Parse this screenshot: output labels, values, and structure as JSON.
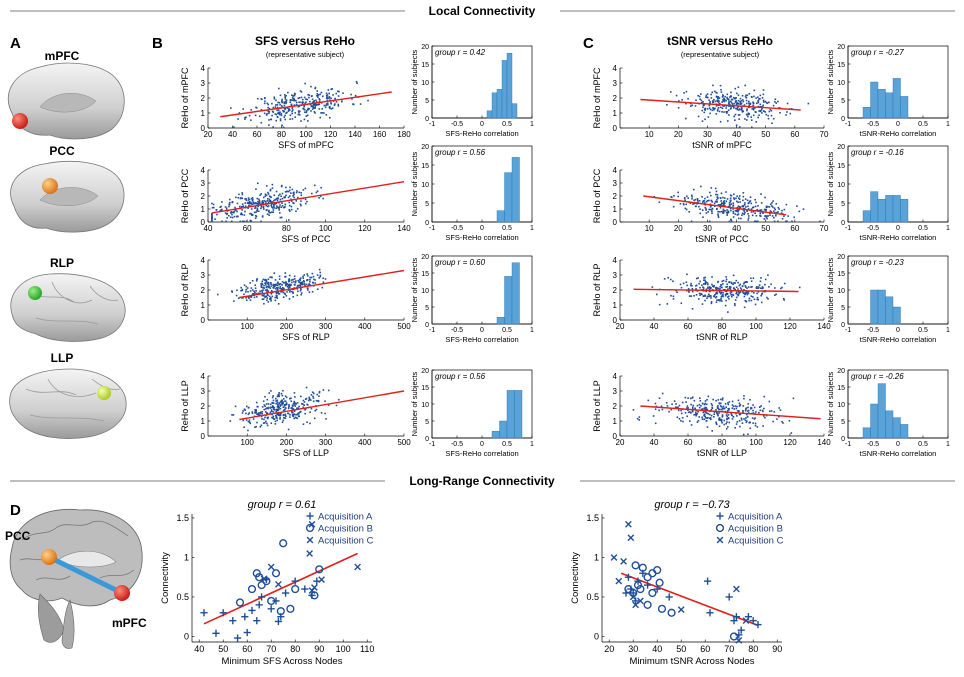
{
  "section_titles": {
    "local": "Local Connectivity",
    "long_range": "Long-Range Connectivity"
  },
  "panel_letters": {
    "A": "A",
    "B": "B",
    "C": "C",
    "D": "D"
  },
  "regions": [
    "mPFC",
    "PCC",
    "RLP",
    "LLP"
  ],
  "region_colors": {
    "mPFC": "#e8281e",
    "PCC": "#f0921e",
    "RLP": "#3cbf32",
    "LLP": "#c8e62a"
  },
  "panelB": {
    "title": "SFS versus ReHo",
    "subtitle": "(representative subject)"
  },
  "panelC": {
    "title": "tSNR versus ReHo",
    "subtitle": "(representative subject)"
  },
  "histogram_labels": {
    "ylabel": "Number of subjects",
    "xlabel_sfs": "SFS-ReHo correlation",
    "xlabel_tsnr": "tSNR-ReHo correlation"
  },
  "panelD": {
    "pcc_label": "PCC",
    "mpfc_label": "mPFC",
    "legend": [
      {
        "symbol": "+",
        "label": "Acquisition A"
      },
      {
        "symbol": "○",
        "label": "Acquisition B"
      },
      {
        "symbol": "×",
        "label": "Acquisition C"
      }
    ]
  },
  "colors": {
    "points": "#1f4e99",
    "fit": "#e0201b",
    "hist": "#5aa3d8"
  },
  "chart_data": [
    {
      "id": "b-mpfc",
      "type": "scatter",
      "xlabel": "SFS of mPFC",
      "ylabel": "ReHo of mPFC",
      "xlim": [
        20,
        180
      ],
      "ylim": [
        0,
        4
      ],
      "xticks": [
        20,
        40,
        60,
        80,
        100,
        120,
        140,
        160,
        180
      ],
      "yticks": [
        0,
        1,
        2,
        3,
        4
      ],
      "fit": [
        [
          30,
          0.75
        ],
        [
          170,
          2.4
        ]
      ],
      "cloud": {
        "cx": 95,
        "sx": 20,
        "cy": 1.55,
        "sy": 0.5,
        "n": 320,
        "seed": 11
      }
    },
    {
      "id": "b-pcc",
      "type": "scatter",
      "xlabel": "SFS of PCC",
      "ylabel": "ReHo of PCC",
      "xlim": [
        40,
        140
      ],
      "ylim": [
        0,
        4
      ],
      "xticks": [
        40,
        60,
        80,
        100,
        120,
        140
      ],
      "yticks": [
        0,
        1,
        2,
        3,
        4
      ],
      "fit": [
        [
          42,
          0.7
        ],
        [
          140,
          3.1
        ]
      ],
      "cloud": {
        "cx": 66,
        "sx": 13,
        "cy": 1.3,
        "sy": 0.55,
        "n": 330,
        "seed": 23
      }
    },
    {
      "id": "b-rlp",
      "type": "scatter",
      "xlabel": "SFS of RLP",
      "ylabel": "ReHo of RLP",
      "xlim": [
        0,
        500
      ],
      "ylim": [
        0,
        4
      ],
      "xticks": [
        100,
        200,
        300,
        400,
        500
      ],
      "yticks": [
        0,
        1,
        2,
        3,
        4
      ],
      "fit": [
        [
          80,
          1.5
        ],
        [
          500,
          3.3
        ]
      ],
      "cloud": {
        "cx": 180,
        "sx": 50,
        "cy": 2.2,
        "sy": 0.4,
        "n": 320,
        "seed": 37
      }
    },
    {
      "id": "b-llp",
      "type": "scatter",
      "xlabel": "SFS of LLP",
      "ylabel": "ReHo of LLP",
      "xlim": [
        0,
        500
      ],
      "ylim": [
        0,
        4
      ],
      "xticks": [
        100,
        200,
        300,
        400,
        500
      ],
      "yticks": [
        0,
        1,
        2,
        3,
        4
      ],
      "fit": [
        [
          80,
          1.1
        ],
        [
          500,
          3.0
        ]
      ],
      "cloud": {
        "cx": 190,
        "sx": 55,
        "cy": 1.8,
        "sy": 0.5,
        "n": 320,
        "seed": 41
      }
    },
    {
      "id": "c-mpfc",
      "type": "scatter",
      "xlabel": "tSNR of mPFC",
      "ylabel": "ReHo of mPFC",
      "xlim": [
        0,
        70
      ],
      "ylim": [
        0,
        4
      ],
      "xticks": [
        10,
        20,
        30,
        40,
        50,
        60,
        70
      ],
      "yticks": [
        0,
        1,
        2,
        3,
        4
      ],
      "fit": [
        [
          7,
          1.9
        ],
        [
          62,
          1.2
        ]
      ],
      "cloud": {
        "cx": 40,
        "sx": 9,
        "cy": 1.5,
        "sy": 0.5,
        "n": 320,
        "seed": 53
      }
    },
    {
      "id": "c-pcc",
      "type": "scatter",
      "xlabel": "tSNR of PCC",
      "ylabel": "ReHo of PCC",
      "xlim": [
        0,
        70
      ],
      "ylim": [
        0,
        4
      ],
      "xticks": [
        10,
        20,
        30,
        40,
        50,
        60,
        70
      ],
      "yticks": [
        0,
        1,
        2,
        3,
        4
      ],
      "fit": [
        [
          8,
          2.0
        ],
        [
          57,
          0.55
        ]
      ],
      "cloud": {
        "cx": 38,
        "sx": 9,
        "cy": 1.1,
        "sy": 0.5,
        "n": 330,
        "seed": 67
      }
    },
    {
      "id": "c-rlp",
      "type": "scatter",
      "xlabel": "tSNR of RLP",
      "ylabel": "ReHo of RLP",
      "xlim": [
        20,
        140
      ],
      "ylim": [
        0,
        4
      ],
      "xticks": [
        20,
        40,
        60,
        80,
        100,
        120,
        140
      ],
      "yticks": [
        0,
        1,
        2,
        3,
        4
      ],
      "fit": [
        [
          28,
          2.05
        ],
        [
          125,
          1.9
        ]
      ],
      "cloud": {
        "cx": 82,
        "sx": 16,
        "cy": 1.95,
        "sy": 0.45,
        "n": 320,
        "seed": 71
      }
    },
    {
      "id": "c-llp",
      "type": "scatter",
      "xlabel": "tSNR of LLP",
      "ylabel": "ReHo of LLP",
      "xlim": [
        20,
        140
      ],
      "ylim": [
        0,
        4
      ],
      "xticks": [
        20,
        40,
        60,
        80,
        100,
        120,
        140
      ],
      "yticks": [
        0,
        1,
        2,
        3,
        4
      ],
      "fit": [
        [
          32,
          2.0
        ],
        [
          138,
          1.15
        ]
      ],
      "cloud": {
        "cx": 78,
        "sx": 18,
        "cy": 1.6,
        "sy": 0.5,
        "n": 320,
        "seed": 83
      }
    },
    {
      "id": "hb-mpfc",
      "type": "bar",
      "group_r": "group r = 0.42",
      "xlim": [
        -1,
        1
      ],
      "ylim": [
        0,
        20
      ],
      "xticks": [
        -1,
        -0.5,
        0,
        0.5,
        1
      ],
      "xticklabels": [
        "-1",
        "-0.5",
        "0",
        "0.5",
        "1"
      ],
      "yticks": [
        0,
        5,
        10,
        15,
        20
      ],
      "bin_edges": [
        0.1,
        0.2,
        0.3,
        0.4,
        0.5,
        0.6,
        0.7
      ],
      "counts": [
        2,
        7,
        8,
        16,
        18,
        4
      ]
    },
    {
      "id": "hb-pcc",
      "type": "bar",
      "group_r": "group r = 0.56",
      "xlim": [
        -1,
        1
      ],
      "ylim": [
        0,
        20
      ],
      "xticks": [
        -1,
        -0.5,
        0,
        0.5,
        1
      ],
      "xticklabels": [
        "-1",
        "-0.5",
        "0",
        "0.5",
        "1"
      ],
      "yticks": [
        0,
        5,
        10,
        15,
        20
      ],
      "bin_edges": [
        0.3,
        0.45,
        0.6,
        0.75
      ],
      "counts": [
        3,
        13,
        17
      ]
    },
    {
      "id": "hb-rlp",
      "type": "bar",
      "group_r": "group r = 0.60",
      "xlim": [
        -1,
        1
      ],
      "ylim": [
        0,
        20
      ],
      "xticks": [
        -1,
        -0.5,
        0,
        0.5,
        1
      ],
      "xticklabels": [
        "-1",
        "-0.5",
        "0",
        "0.5",
        "1"
      ],
      "yticks": [
        0,
        5,
        10,
        15,
        20
      ],
      "bin_edges": [
        0.3,
        0.45,
        0.6,
        0.75
      ],
      "counts": [
        2,
        14,
        18
      ]
    },
    {
      "id": "hb-llp",
      "type": "bar",
      "group_r": "group r = 0.56",
      "xlim": [
        -1,
        1
      ],
      "ylim": [
        0,
        20
      ],
      "xticks": [
        -1,
        -0.5,
        0,
        0.5,
        1
      ],
      "xticklabels": [
        "-1",
        "-0.5",
        "0",
        "0.5",
        "1"
      ],
      "yticks": [
        0,
        5,
        10,
        15,
        20
      ],
      "bin_edges": [
        0.2,
        0.35,
        0.5,
        0.65,
        0.8
      ],
      "counts": [
        2,
        5,
        14,
        14
      ]
    },
    {
      "id": "hc-mpfc",
      "type": "bar",
      "group_r": "group r = -0.27",
      "xlim": [
        -1,
        1
      ],
      "ylim": [
        0,
        20
      ],
      "xticks": [
        -1,
        -0.5,
        0,
        0.5,
        1
      ],
      "xticklabels": [
        "-1",
        "-0.5",
        "0",
        "0.5",
        "1"
      ],
      "yticks": [
        0,
        5,
        10,
        15,
        20
      ],
      "bin_edges": [
        -0.7,
        -0.55,
        -0.4,
        -0.25,
        -0.1,
        0.05,
        0.2
      ],
      "counts": [
        3,
        10,
        8,
        7,
        11,
        6
      ]
    },
    {
      "id": "hc-pcc",
      "type": "bar",
      "group_r": "group r = -0.16",
      "xlim": [
        -1,
        1
      ],
      "ylim": [
        0,
        20
      ],
      "xticks": [
        -1,
        -0.5,
        0,
        0.5,
        1
      ],
      "xticklabels": [
        "-1",
        "-0.5",
        "0",
        "0.5",
        "1"
      ],
      "yticks": [
        0,
        5,
        10,
        15,
        20
      ],
      "bin_edges": [
        -0.7,
        -0.55,
        -0.4,
        -0.25,
        -0.1,
        0.05,
        0.2
      ],
      "counts": [
        3,
        8,
        6,
        7,
        7,
        6
      ]
    },
    {
      "id": "hc-rlp",
      "type": "bar",
      "group_r": "group r = -0.23",
      "xlim": [
        -1,
        1
      ],
      "ylim": [
        0,
        20
      ],
      "xticks": [
        -1,
        -0.5,
        0,
        0.5,
        1
      ],
      "xticklabels": [
        "-1",
        "-0.5",
        "0",
        "0.5",
        "1"
      ],
      "yticks": [
        0,
        5,
        10,
        15,
        20
      ],
      "bin_edges": [
        -0.55,
        -0.4,
        -0.25,
        -0.1,
        0.05
      ],
      "counts": [
        10,
        10,
        8,
        5
      ]
    },
    {
      "id": "hc-llp",
      "type": "bar",
      "group_r": "group r = -0.26",
      "xlim": [
        -1,
        1
      ],
      "ylim": [
        0,
        20
      ],
      "xticks": [
        -1,
        -0.5,
        0,
        0.5,
        1
      ],
      "xticklabels": [
        "-1",
        "-0.5",
        "0",
        "0.5",
        "1"
      ],
      "yticks": [
        0,
        5,
        10,
        15,
        20
      ],
      "bin_edges": [
        -0.7,
        -0.55,
        -0.4,
        -0.25,
        -0.1,
        0.05,
        0.2
      ],
      "counts": [
        3,
        10,
        16,
        8,
        6,
        4
      ]
    },
    {
      "id": "d-sfs",
      "type": "scatter",
      "title": "group r = 0.61",
      "xlabel": "Minimum SFS Across Nodes",
      "ylabel": "Connectivity",
      "xlim": [
        37,
        112
      ],
      "ylim": [
        -0.07,
        1.55
      ],
      "xticks": [
        40,
        50,
        60,
        70,
        80,
        90,
        100,
        110
      ],
      "yticks": [
        0,
        0.5,
        1,
        1.5
      ],
      "fit": [
        [
          42,
          0.16
        ],
        [
          106,
          1.05
        ]
      ],
      "series": [
        {
          "name": "Acquisition A",
          "marker": "plus",
          "points": [
            [
              42,
              0.3
            ],
            [
              47,
              0.04
            ],
            [
              50,
              0.3
            ],
            [
              54,
              0.2
            ],
            [
              56,
              -0.02
            ],
            [
              59,
              0.25
            ],
            [
              60,
              0.05
            ],
            [
              62,
              0.33
            ],
            [
              64,
              0.2
            ],
            [
              65,
              0.4
            ],
            [
              66,
              0.5
            ],
            [
              68,
              0.72
            ],
            [
              70,
              0.35
            ],
            [
              72,
              0.45
            ],
            [
              74,
              0.25
            ],
            [
              73,
              0.19
            ],
            [
              76,
              0.55
            ],
            [
              80,
              0.7
            ],
            [
              84,
              0.6
            ],
            [
              87,
              0.52
            ],
            [
              89,
              0.7
            ]
          ]
        },
        {
          "name": "Acquisition B",
          "marker": "circle",
          "points": [
            [
              57,
              0.43
            ],
            [
              62,
              0.6
            ],
            [
              64,
              0.8
            ],
            [
              65,
              0.75
            ],
            [
              66,
              0.65
            ],
            [
              68,
              0.7
            ],
            [
              70,
              0.45
            ],
            [
              72,
              0.8
            ],
            [
              75,
              1.18
            ],
            [
              74,
              0.32
            ],
            [
              78,
              0.35
            ],
            [
              80,
              0.6
            ],
            [
              88,
              0.52
            ],
            [
              90,
              0.85
            ]
          ]
        },
        {
          "name": "Acquisition C",
          "marker": "x",
          "points": [
            [
              67,
              0.73
            ],
            [
              70,
              0.88
            ],
            [
              73,
              0.66
            ],
            [
              86,
              1.05
            ],
            [
              87,
              0.58
            ],
            [
              87,
              1.42
            ],
            [
              88,
              0.62
            ],
            [
              91,
              0.72
            ],
            [
              106,
              0.88
            ]
          ]
        }
      ]
    },
    {
      "id": "d-tsnr",
      "type": "scatter",
      "title": "group r = −0.73",
      "xlabel": "Minimum tSNR Across Nodes",
      "ylabel": "Connectivity",
      "xlim": [
        17,
        92
      ],
      "ylim": [
        -0.07,
        1.55
      ],
      "xticks": [
        20,
        30,
        40,
        50,
        60,
        70,
        80,
        90
      ],
      "yticks": [
        0,
        0.5,
        1,
        1.5
      ],
      "fit": [
        [
          25,
          0.8
        ],
        [
          82,
          0.14
        ]
      ],
      "series": [
        {
          "name": "Acquisition A",
          "marker": "plus",
          "points": [
            [
              27,
              0.55
            ],
            [
              28,
              0.75
            ],
            [
              29,
              0.6
            ],
            [
              30,
              0.55
            ],
            [
              31,
              0.45
            ],
            [
              32,
              0.7
            ],
            [
              34,
              0.8
            ],
            [
              36,
              0.65
            ],
            [
              40,
              0.6
            ],
            [
              45,
              0.5
            ],
            [
              61,
              0.7
            ],
            [
              62,
              0.3
            ],
            [
              70,
              0.5
            ],
            [
              72,
              0.2
            ],
            [
              73,
              0.25
            ],
            [
              74,
              0.02
            ],
            [
              75,
              0.08
            ],
            [
              78,
              0.25
            ],
            [
              80,
              0.2
            ],
            [
              82,
              0.15
            ]
          ]
        },
        {
          "name": "Acquisition B",
          "marker": "circle",
          "points": [
            [
              28,
              0.6
            ],
            [
              30,
              0.55
            ],
            [
              31,
              0.9
            ],
            [
              32,
              0.65
            ],
            [
              33,
              0.6
            ],
            [
              34,
              0.87
            ],
            [
              36,
              0.75
            ],
            [
              36,
              0.4
            ],
            [
              38,
              0.55
            ],
            [
              38,
              0.8
            ],
            [
              40,
              0.84
            ],
            [
              41,
              0.68
            ],
            [
              42,
              0.35
            ],
            [
              46,
              0.3
            ],
            [
              72,
              0.0
            ]
          ]
        },
        {
          "name": "Acquisition C",
          "marker": "x",
          "points": [
            [
              22,
              1.0
            ],
            [
              24,
              0.7
            ],
            [
              26,
              0.95
            ],
            [
              28,
              1.42
            ],
            [
              29,
              1.25
            ],
            [
              30,
              0.5
            ],
            [
              31,
              0.4
            ],
            [
              33,
              0.45
            ],
            [
              50,
              0.34
            ],
            [
              73,
              0.6
            ],
            [
              74,
              -0.05
            ],
            [
              77,
              0.2
            ]
          ]
        }
      ]
    }
  ]
}
